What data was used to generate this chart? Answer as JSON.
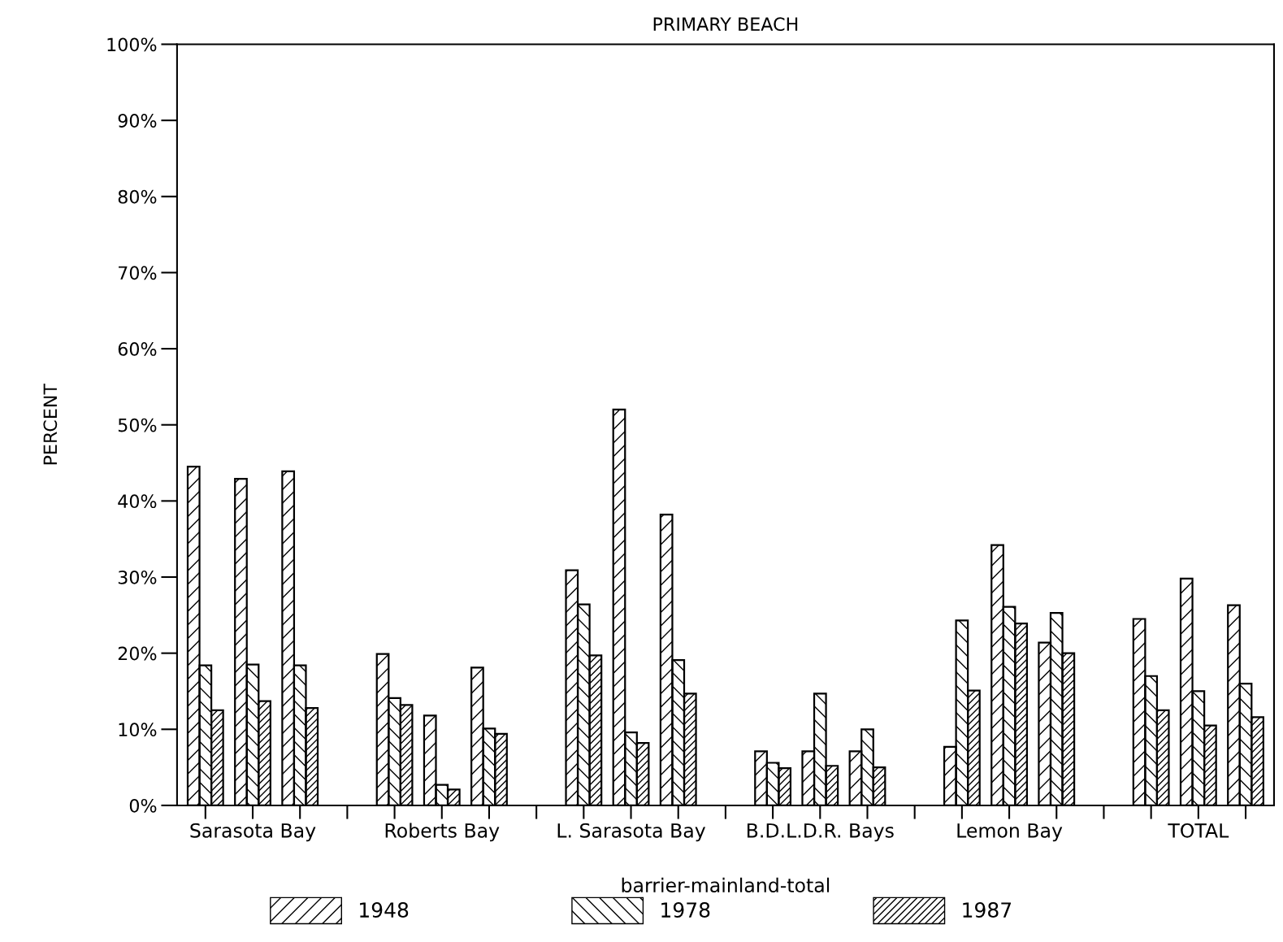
{
  "chart_data": {
    "type": "bar",
    "title": "PRIMARY BEACH",
    "xlabel": "barrier-mainland-total",
    "ylabel": "PERCENT",
    "categories": [
      null,
      "Sarasota Bay",
      null,
      null,
      null,
      "Roberts Bay",
      null,
      null,
      null,
      "L. Sarasota Bay",
      null,
      null,
      null,
      "B.D.L.D.R. Bays",
      null,
      null,
      null,
      "Lemon Bay",
      null,
      null,
      null,
      "TOTAL",
      null
    ],
    "series": [
      {
        "name": "1948",
        "color": "#000000",
        "values": [
          44.5,
          42.9,
          43.9,
          null,
          19.9,
          11.8,
          18.1,
          null,
          30.9,
          52.0,
          38.2,
          null,
          7.1,
          7.1,
          7.1,
          null,
          7.7,
          34.2,
          21.4,
          null,
          24.5,
          29.8,
          26.3
        ]
      },
      {
        "name": "1978",
        "color": "#000000",
        "values": [
          18.4,
          18.5,
          18.4,
          null,
          14.1,
          2.7,
          10.1,
          null,
          26.4,
          9.6,
          19.1,
          null,
          5.6,
          14.7,
          10.0,
          null,
          24.3,
          26.1,
          25.3,
          null,
          17.0,
          15.0,
          16.0
        ]
      },
      {
        "name": "1987",
        "color": "#000000",
        "values": [
          12.5,
          13.7,
          12.8,
          null,
          13.2,
          2.1,
          9.4,
          null,
          19.7,
          8.2,
          14.7,
          null,
          4.9,
          5.2,
          5.0,
          null,
          15.1,
          23.9,
          20.0,
          null,
          12.5,
          10.5,
          11.6
        ]
      }
    ],
    "ylim": [
      0,
      100
    ],
    "yticks": [
      {
        "value": 0,
        "label": "0%"
      },
      {
        "value": 10,
        "label": "10%"
      },
      {
        "value": 20,
        "label": "20%"
      },
      {
        "value": 30,
        "label": "30%"
      },
      {
        "value": 40,
        "label": "40%"
      },
      {
        "value": 50,
        "label": "50%"
      },
      {
        "value": 60,
        "label": "60%"
      },
      {
        "value": 70,
        "label": "70%"
      },
      {
        "value": 80,
        "label": "80%"
      },
      {
        "value": 90,
        "label": "90%"
      },
      {
        "value": 100,
        "label": "100%"
      }
    ],
    "grid": false,
    "legend": "bottom"
  }
}
